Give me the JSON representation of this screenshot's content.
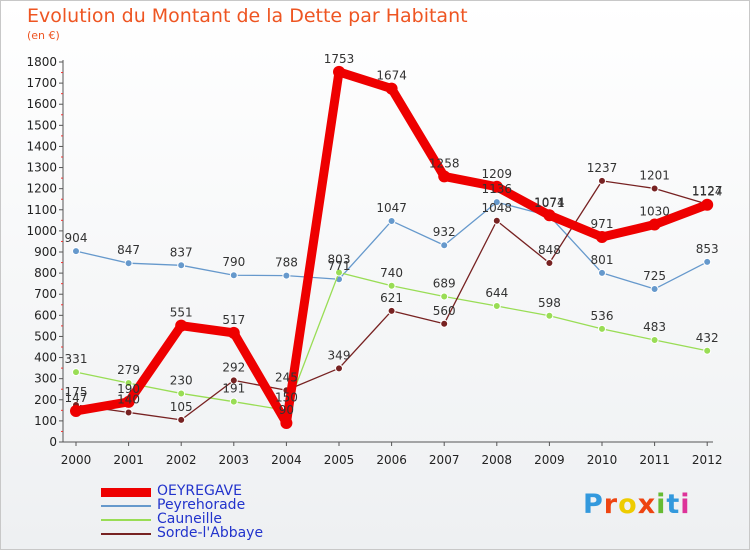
{
  "chart_data": {
    "type": "line",
    "title": "Evolution du Montant de la Dette par Habitant",
    "subtitle": "(en €)",
    "x": [
      "2000",
      "2001",
      "2002",
      "2003",
      "2004",
      "2005",
      "2006",
      "2007",
      "2008",
      "2009",
      "2010",
      "2011",
      "2012"
    ],
    "ylim": [
      0,
      1800
    ],
    "yticks": [
      0,
      100,
      200,
      300,
      400,
      500,
      600,
      700,
      800,
      900,
      1000,
      1100,
      1200,
      1300,
      1400,
      1500,
      1600,
      1700,
      1800
    ],
    "grid": false,
    "legend_position": "bottom-left",
    "series": [
      {
        "name": "OEYREGAVE",
        "color": "#ee0000",
        "values": [
          147,
          190,
          551,
          517,
          90,
          1753,
          1674,
          1258,
          1209,
          1074,
          971,
          1030,
          1124
        ]
      },
      {
        "name": "Peyrehorade",
        "color": "#6699cc",
        "values": [
          904,
          847,
          837,
          790,
          788,
          771,
          1047,
          932,
          1136,
          1071,
          801,
          725,
          853
        ]
      },
      {
        "name": "Cauneille",
        "color": "#99dd55",
        "values": [
          331,
          279,
          230,
          191,
          150,
          803,
          740,
          689,
          644,
          598,
          536,
          483,
          432
        ]
      },
      {
        "name": "Sorde-l'Abbaye",
        "color": "#772222",
        "values": [
          175,
          140,
          105,
          292,
          245,
          349,
          621,
          560,
          1048,
          848,
          1237,
          1201,
          1127
        ]
      }
    ]
  },
  "logo": {
    "text": "Proxiti",
    "colors": [
      "#3399dd",
      "#ee4411",
      "#eecc00",
      "#ee4411",
      "#66bb33",
      "#3399dd",
      "#dd3399"
    ]
  }
}
